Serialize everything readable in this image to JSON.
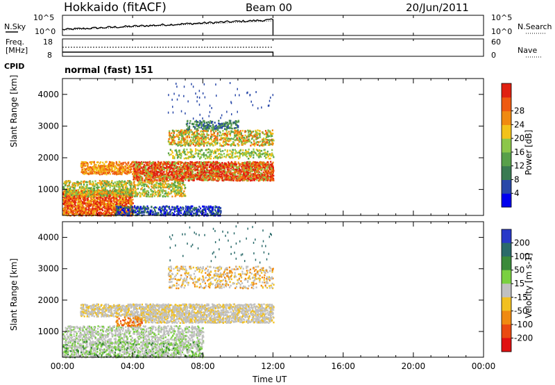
{
  "header": {
    "radar": "Hokkaido (fitACF)",
    "beam": "Beam 00",
    "date": "20/Jun/2011"
  },
  "top_panels": {
    "nsky_label": "N.Sky",
    "nsky_ticks": [
      "10^5",
      "10^0"
    ],
    "nsearch_label": "N.Search",
    "nsearch_ticks": [
      "10^5",
      "10^0"
    ],
    "freq_label_1": "Freq.",
    "freq_label_2": "[MHz]",
    "freq_ticks": [
      "18",
      "8"
    ],
    "nave_label": "Nave",
    "nave_ticks": [
      "60",
      "0"
    ],
    "cpid_label": "CPID",
    "cpid_value": "normal (fast) 151"
  },
  "chart_data": [
    {
      "type": "heatmap",
      "panel": "power",
      "ylabel": "Slant Range [km]",
      "y_ticks": [
        1000,
        2000,
        3000,
        4000
      ],
      "ylim": [
        180,
        4500
      ],
      "x_ticks": [
        "00:00",
        "04:00",
        "08:00",
        "12:00",
        "16:00",
        "20:00",
        "00:00"
      ],
      "xlim_hours": [
        0,
        24
      ],
      "data_end_hour": 12,
      "colorbar": {
        "label": "Power [dB]",
        "ticks": [
          "4",
          "8",
          "12",
          "16",
          "20",
          "24",
          "28"
        ],
        "colors": [
          "#0000ee",
          "#2848a8",
          "#3a7a52",
          "#58a04a",
          "#8cc64a",
          "#f2c21a",
          "#f08a10",
          "#ee5a10",
          "#e02010"
        ]
      }
    },
    {
      "type": "heatmap",
      "panel": "velocity",
      "ylabel": "Slant Range [km]",
      "y_ticks": [
        1000,
        2000,
        3000,
        4000
      ],
      "ylim": [
        180,
        4500
      ],
      "x_ticks": [
        "00:00",
        "04:00",
        "08:00",
        "12:00",
        "16:00",
        "20:00",
        "00:00"
      ],
      "xlabel": "Time UT",
      "xlim_hours": [
        0,
        24
      ],
      "data_end_hour": 12,
      "colorbar": {
        "label": "Velocity [m s-1]",
        "ticks": [
          "200",
          "100",
          "50",
          "15",
          "-15",
          "-50",
          "-100",
          "-200"
        ],
        "colors": [
          "#2838c8",
          "#2a6a6a",
          "#3a8a3a",
          "#7ad040",
          "#c0c0c0",
          "#f2c020",
          "#f08a10",
          "#ea4a10",
          "#e01010"
        ]
      }
    }
  ]
}
